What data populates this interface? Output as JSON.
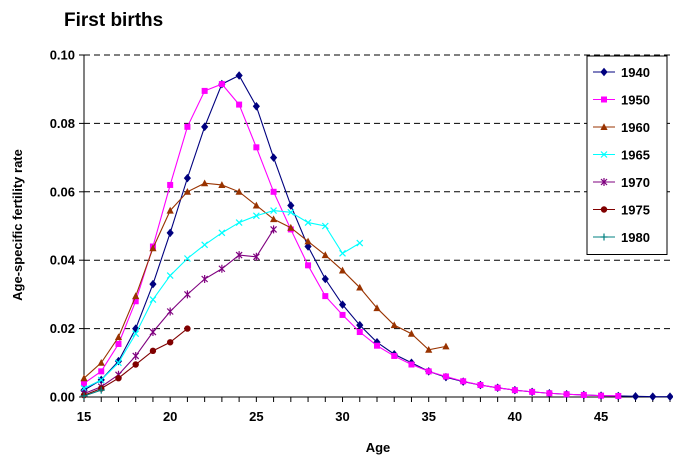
{
  "chart_data": {
    "type": "line",
    "title": "First births",
    "xlabel": "Age",
    "ylabel": "Age-specific fertility rate",
    "xlim": [
      15,
      49
    ],
    "ylim": [
      0,
      0.1
    ],
    "x_ticks": [
      15,
      20,
      25,
      30,
      35,
      40,
      45
    ],
    "y_ticks": [
      0.0,
      0.02,
      0.04,
      0.06,
      0.08,
      0.1
    ],
    "y_tick_labels": [
      "0.00",
      "0.02",
      "0.04",
      "0.06",
      "0.08",
      "0.10"
    ],
    "grid": "horizontal-dashed",
    "legend_position": "top-right",
    "series": [
      {
        "name": "1940",
        "color": "#00007f",
        "marker": "diamond",
        "x": [
          15,
          16,
          17,
          18,
          19,
          20,
          21,
          22,
          23,
          24,
          25,
          26,
          27,
          28,
          29,
          30,
          31,
          32,
          33,
          34,
          35,
          36,
          37,
          38,
          39,
          40,
          41,
          42,
          43,
          44,
          45,
          46,
          47,
          48,
          49
        ],
        "y": [
          0.002,
          0.005,
          0.0105,
          0.02,
          0.033,
          0.048,
          0.064,
          0.079,
          0.0915,
          0.094,
          0.085,
          0.07,
          0.056,
          0.044,
          0.0345,
          0.027,
          0.021,
          0.016,
          0.0125,
          0.01,
          0.0075,
          0.0058,
          0.0045,
          0.0035,
          0.0027,
          0.002,
          0.0015,
          0.0011,
          0.0008,
          0.0006,
          0.0004,
          0.0003,
          0.0002,
          0.0001,
          0.0001
        ]
      },
      {
        "name": "1950",
        "color": "#ff00ff",
        "marker": "square",
        "x": [
          15,
          16,
          17,
          18,
          19,
          20,
          21,
          22,
          23,
          24,
          25,
          26,
          27,
          28,
          29,
          30,
          31,
          32,
          33,
          34,
          35,
          36,
          37,
          38,
          39,
          40,
          41,
          42,
          43,
          44,
          45,
          46
        ],
        "y": [
          0.004,
          0.0075,
          0.0155,
          0.028,
          0.044,
          0.062,
          0.079,
          0.0895,
          0.0915,
          0.0855,
          0.073,
          0.06,
          0.049,
          0.0385,
          0.0295,
          0.024,
          0.019,
          0.015,
          0.012,
          0.0095,
          0.0075,
          0.006,
          0.0046,
          0.0035,
          0.0027,
          0.002,
          0.0015,
          0.0011,
          0.0008,
          0.0006,
          0.0004,
          0.0003
        ]
      },
      {
        "name": "1960",
        "color": "#993300",
        "marker": "triangle",
        "x": [
          15,
          16,
          17,
          18,
          19,
          20,
          21,
          22,
          23,
          24,
          25,
          26,
          27,
          28,
          29,
          30,
          31,
          32,
          33,
          34,
          35,
          36
        ],
        "y": [
          0.0055,
          0.01,
          0.0175,
          0.0295,
          0.0435,
          0.0545,
          0.06,
          0.0625,
          0.062,
          0.06,
          0.056,
          0.052,
          0.0495,
          0.0455,
          0.0415,
          0.037,
          0.032,
          0.026,
          0.021,
          0.0185,
          0.0138,
          0.0148
        ]
      },
      {
        "name": "1965",
        "color": "#00ffff",
        "marker": "x",
        "x": [
          15,
          16,
          17,
          18,
          19,
          20,
          21,
          22,
          23,
          24,
          25,
          26,
          27,
          28,
          29,
          30,
          31
        ],
        "y": [
          0.0025,
          0.005,
          0.01,
          0.0185,
          0.0285,
          0.0355,
          0.0405,
          0.0445,
          0.048,
          0.051,
          0.053,
          0.0545,
          0.054,
          0.051,
          0.05,
          0.042,
          0.045
        ]
      },
      {
        "name": "1970",
        "color": "#7f007f",
        "marker": "star",
        "x": [
          15,
          16,
          17,
          18,
          19,
          20,
          21,
          22,
          23,
          24,
          25,
          26
        ],
        "y": [
          0.001,
          0.003,
          0.0065,
          0.012,
          0.019,
          0.025,
          0.03,
          0.0345,
          0.0375,
          0.0415,
          0.041,
          0.049
        ]
      },
      {
        "name": "1975",
        "color": "#800000",
        "marker": "circle",
        "x": [
          15,
          16,
          17,
          18,
          19,
          20,
          21
        ],
        "y": [
          0.0005,
          0.0025,
          0.0055,
          0.0095,
          0.0135,
          0.016,
          0.02
        ]
      },
      {
        "name": "1980",
        "color": "#008080",
        "marker": "plus",
        "x": [
          15,
          16
        ],
        "y": [
          0.0003,
          0.002
        ]
      }
    ]
  }
}
